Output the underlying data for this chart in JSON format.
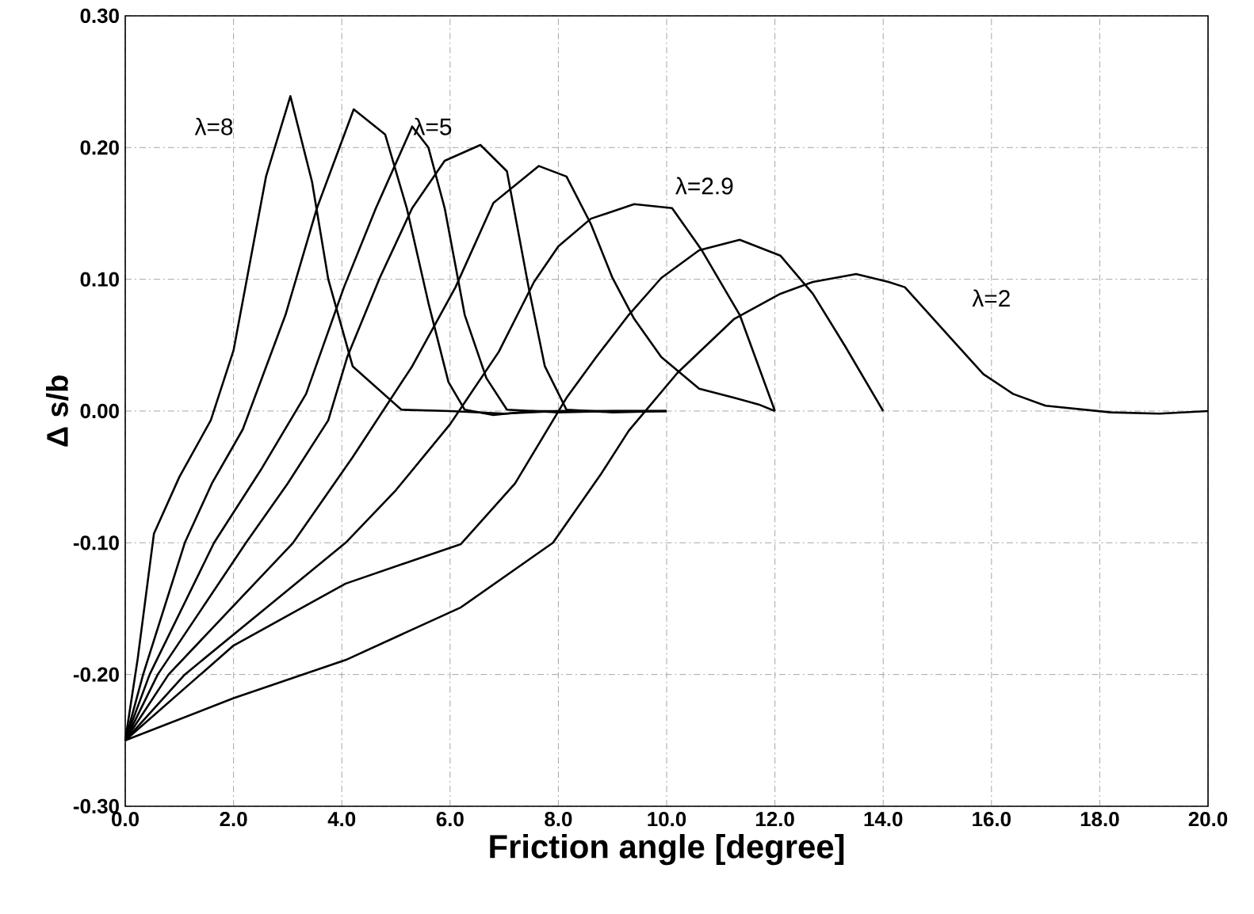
{
  "chart_data": {
    "type": "line",
    "xlabel": "Friction angle [degree]",
    "ylabel": "Δ s/b",
    "xlim": [
      0,
      20
    ],
    "ylim": [
      -0.3,
      0.3
    ],
    "xticks": [
      {
        "value": 0,
        "label": "0.0"
      },
      {
        "value": 2,
        "label": "2.0"
      },
      {
        "value": 4,
        "label": "4.0"
      },
      {
        "value": 6,
        "label": "6.0"
      },
      {
        "value": 8,
        "label": "8.0"
      },
      {
        "value": 10,
        "label": "10.0"
      },
      {
        "value": 12,
        "label": "12.0"
      },
      {
        "value": 14,
        "label": "14.0"
      },
      {
        "value": 16,
        "label": "16.0"
      },
      {
        "value": 18,
        "label": "18.0"
      },
      {
        "value": 20,
        "label": "20.0"
      }
    ],
    "yticks": [
      {
        "value": -0.3,
        "label": "-0.30"
      },
      {
        "value": -0.2,
        "label": "-0.20"
      },
      {
        "value": -0.1,
        "label": "-0.10"
      },
      {
        "value": 0,
        "label": "0.00"
      },
      {
        "value": 0.1,
        "label": "0.10"
      },
      {
        "value": 0.2,
        "label": "0.20"
      },
      {
        "value": 0.3,
        "label": "0.30"
      }
    ],
    "grid": true,
    "marker": "none",
    "line_style": "solid",
    "series": [
      {
        "color": "#000000",
        "x": [
          0,
          0.23,
          0.41,
          0.53,
          1.0,
          1.58,
          2.0,
          2.6,
          3.05,
          3.45,
          3.75,
          4.2,
          5.1,
          6.0,
          7.0,
          8.0,
          9.0,
          10.0
        ],
        "values": [
          -0.25,
          -0.188,
          -0.131,
          -0.093,
          -0.05,
          -0.007,
          0.046,
          0.178,
          0.239,
          0.174,
          0.1,
          0.034,
          0.001,
          0.0,
          -0.002,
          0.0,
          0.0,
          0.0
        ]
      },
      {
        "color": "#000000",
        "x": [
          0,
          0.33,
          1.1,
          1.6,
          2.17,
          2.96,
          3.54,
          4.22,
          4.8,
          5.2,
          5.6,
          5.97,
          6.27,
          6.8,
          7.5,
          8.5,
          10.0
        ],
        "values": [
          -0.25,
          -0.2,
          -0.1,
          -0.055,
          -0.014,
          0.073,
          0.154,
          0.229,
          0.21,
          0.154,
          0.082,
          0.022,
          0.001,
          -0.003,
          0.0,
          0.0,
          0.0
        ]
      },
      {
        "color": "#000000",
        "x": [
          0,
          0.45,
          1.64,
          2.5,
          3.34,
          4.04,
          4.63,
          5.3,
          5.6,
          5.9,
          6.27,
          6.67,
          7.05,
          8.0,
          9.0,
          10.0
        ],
        "values": [
          -0.25,
          -0.2,
          -0.1,
          -0.045,
          0.013,
          0.094,
          0.154,
          0.216,
          0.2,
          0.154,
          0.073,
          0.025,
          0.001,
          -0.001,
          0.0,
          0.0
        ]
      },
      {
        "color": "#000000",
        "x": [
          0,
          0.6,
          2.23,
          3.0,
          3.75,
          4.1,
          4.7,
          5.3,
          5.9,
          6.56,
          7.05,
          7.45,
          7.75,
          8.15,
          9.0,
          10.0
        ],
        "values": [
          -0.25,
          -0.2,
          -0.1,
          -0.055,
          -0.007,
          0.041,
          0.101,
          0.154,
          0.19,
          0.202,
          0.182,
          0.094,
          0.034,
          0.001,
          -0.001,
          0.0
        ]
      },
      {
        "color": "#000000",
        "x": [
          0,
          0.8,
          3.1,
          4.2,
          5.3,
          6.1,
          6.8,
          7.64,
          8.15,
          8.6,
          9.0,
          9.4,
          9.9,
          10.6,
          11.25,
          11.7,
          12.0
        ],
        "values": [
          -0.25,
          -0.2,
          -0.1,
          -0.035,
          0.034,
          0.094,
          0.158,
          0.186,
          0.178,
          0.142,
          0.101,
          0.07,
          0.041,
          0.017,
          0.01,
          0.005,
          0.0
        ]
      },
      {
        "color": "#000000",
        "x": [
          0,
          1.1,
          4.07,
          5.0,
          6.0,
          6.9,
          7.55,
          8.0,
          8.6,
          9.4,
          10.1,
          10.65,
          11.35,
          12.0
        ],
        "values": [
          -0.25,
          -0.2,
          -0.1,
          -0.06,
          -0.01,
          0.045,
          0.098,
          0.125,
          0.146,
          0.157,
          0.154,
          0.122,
          0.073,
          0.0
        ]
      },
      {
        "color": "#000000",
        "x": [
          0,
          2.0,
          4.07,
          6.2,
          7.2,
          8.15,
          8.7,
          9.3,
          9.9,
          10.6,
          11.35,
          12.1,
          12.7,
          13.3,
          14.0
        ],
        "values": [
          -0.25,
          -0.178,
          -0.131,
          -0.101,
          -0.055,
          0.01,
          0.041,
          0.073,
          0.101,
          0.122,
          0.13,
          0.118,
          0.089,
          0.049,
          0.0
        ]
      },
      {
        "color": "#000000",
        "x": [
          0,
          2.0,
          4.07,
          6.2,
          7.9,
          8.8,
          9.3,
          10.2,
          11.25,
          12.1,
          12.7,
          13.5,
          14.1,
          14.4,
          15.3,
          15.85,
          16.4,
          17.0,
          18.2,
          19.1,
          20.0
        ],
        "values": [
          -0.25,
          -0.218,
          -0.189,
          -0.149,
          -0.1,
          -0.047,
          -0.015,
          0.029,
          0.07,
          0.089,
          0.098,
          0.104,
          0.098,
          0.094,
          0.053,
          0.028,
          0.013,
          0.004,
          -0.001,
          -0.002,
          0.0
        ]
      }
    ],
    "annotations": [
      "λ=8",
      "λ=5",
      "λ=2.9",
      "λ=2"
    ]
  }
}
